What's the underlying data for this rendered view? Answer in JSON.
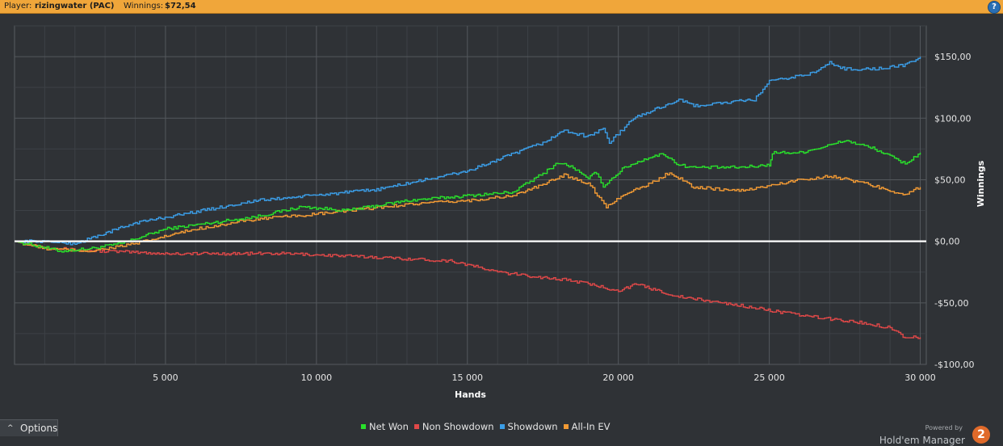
{
  "header": {
    "player_label": "Player:",
    "player_name": "rizingwater (PAC)",
    "winnings_label": "Winnings:",
    "winnings_value": "$72,54",
    "help_glyph": "?"
  },
  "footer": {
    "options_chevron": "^",
    "options_label": "Options",
    "powered_by": "Powered by",
    "brand_name": "Hold'em Manager",
    "brand_logo": "2"
  },
  "chart_data": {
    "type": "line",
    "xlabel": "Hands",
    "ylabel": "Winnings",
    "xlim": [
      0,
      30200
    ],
    "ylim": [
      -100,
      175
    ],
    "x_ticks": [
      5000,
      10000,
      15000,
      20000,
      25000,
      30000
    ],
    "x_tick_labels": [
      "5 000",
      "10 000",
      "15 000",
      "20 000",
      "25 000",
      "30 000"
    ],
    "y_ticks": [
      150,
      100,
      50,
      0,
      -50,
      -100
    ],
    "y_tick_labels": [
      "$150,00",
      "$100,00",
      "$50,00",
      "$0,00",
      "-$50,00",
      "-$100,00"
    ],
    "grid": true,
    "legend_position": "bottom",
    "zero_line_color": "#ffffff",
    "series": [
      {
        "name": "Net Won",
        "color": "#29e02b",
        "x": [
          0,
          1000,
          1500,
          2500,
          3500,
          5000,
          8000,
          9500,
          11000,
          13000,
          15000,
          16500,
          17500,
          18000,
          18500,
          19000,
          19200,
          19500,
          20200,
          21000,
          21500,
          22000,
          22500,
          24000,
          25000,
          25100,
          26000,
          27000,
          27500,
          28500,
          29500,
          30000
        ],
        "y": [
          0,
          -5,
          -8,
          -6,
          -2,
          10,
          20,
          28,
          25,
          33,
          37,
          40,
          55,
          64,
          60,
          50,
          57,
          45,
          60,
          68,
          71,
          62,
          60,
          60,
          62,
          72,
          72,
          78,
          82,
          75,
          63,
          72
        ]
      },
      {
        "name": "Non Showdown",
        "color": "#e04848",
        "x": [
          0,
          1000,
          2000,
          5000,
          9000,
          12000,
          14500,
          16000,
          17000,
          18500,
          20000,
          20600,
          22000,
          24000,
          26000,
          28000,
          29000,
          29500,
          30000
        ],
        "y": [
          0,
          -5,
          -7,
          -10,
          -10,
          -13,
          -16,
          -25,
          -28,
          -32,
          -40,
          -35,
          -45,
          -52,
          -60,
          -66,
          -70,
          -78,
          -78
        ]
      },
      {
        "name": "Showdown",
        "color": "#3b9ee8",
        "x": [
          0,
          1000,
          2000,
          4000,
          8000,
          12000,
          15000,
          17500,
          18200,
          19000,
          19500,
          19700,
          20500,
          22000,
          22500,
          24500,
          25000,
          25300,
          26500,
          27000,
          27500,
          28500,
          29500,
          30000
        ],
        "y": [
          0,
          0,
          -2,
          15,
          33,
          42,
          57,
          80,
          90,
          85,
          92,
          80,
          100,
          115,
          110,
          115,
          130,
          131,
          137,
          145,
          140,
          140,
          143,
          150
        ]
      },
      {
        "name": "All-In EV",
        "color": "#f29a34",
        "x": [
          0,
          1000,
          2500,
          4000,
          6000,
          8000,
          10000,
          13000,
          15000,
          16500,
          17500,
          18200,
          19000,
          19300,
          19600,
          20300,
          21000,
          21700,
          22500,
          24000,
          25000,
          26000,
          27000,
          28000,
          29500,
          30000
        ],
        "y": [
          0,
          -6,
          -8,
          -2,
          10,
          18,
          22,
          30,
          33,
          37,
          46,
          54,
          47,
          38,
          28,
          40,
          46,
          56,
          44,
          41,
          45,
          50,
          53,
          48,
          38,
          44
        ]
      }
    ]
  }
}
